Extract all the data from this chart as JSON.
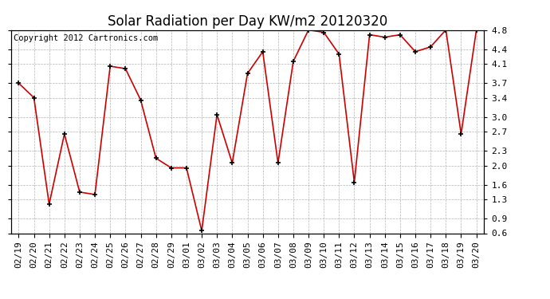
{
  "title": "Solar Radiation per Day KW/m2 20120320",
  "copyright_text": "Copyright 2012 Cartronics.com",
  "dates": [
    "02/19",
    "02/20",
    "02/21",
    "02/22",
    "02/23",
    "02/24",
    "02/25",
    "02/26",
    "02/27",
    "02/28",
    "02/29",
    "03/01",
    "03/02",
    "03/03",
    "03/04",
    "03/05",
    "03/06",
    "03/07",
    "03/08",
    "03/09",
    "03/10",
    "03/11",
    "03/12",
    "03/13",
    "03/14",
    "03/15",
    "03/16",
    "03/17",
    "03/18",
    "03/19",
    "03/20"
  ],
  "values": [
    3.7,
    3.4,
    1.2,
    2.65,
    1.45,
    1.4,
    4.05,
    4.0,
    3.35,
    2.15,
    1.95,
    1.95,
    0.65,
    3.05,
    2.05,
    3.9,
    4.35,
    2.05,
    4.15,
    4.8,
    4.75,
    4.3,
    1.65,
    4.7,
    4.65,
    4.7,
    4.35,
    4.45,
    4.8,
    2.65,
    4.8
  ],
  "line_color": "#cc0000",
  "marker": "+",
  "marker_size": 5,
  "marker_color": "#000000",
  "bg_color": "#ffffff",
  "grid_color": "#aaaaaa",
  "ylim": [
    0.6,
    4.8
  ],
  "yticks": [
    0.6,
    0.9,
    1.3,
    1.6,
    2.0,
    2.3,
    2.7,
    3.0,
    3.4,
    3.7,
    4.1,
    4.4,
    4.8
  ],
  "title_fontsize": 12,
  "tick_fontsize": 8,
  "copyright_fontsize": 7.5,
  "fig_width": 6.9,
  "fig_height": 3.75,
  "dpi": 100
}
